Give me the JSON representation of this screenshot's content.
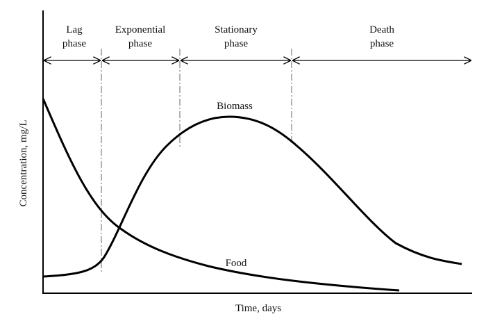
{
  "axes": {
    "x_label": "Time, days",
    "y_label": "Concentration,  mg/L"
  },
  "phases": [
    [
      "Lag",
      "phase"
    ],
    [
      "Exponential",
      "phase"
    ],
    [
      "Stationary",
      "phase"
    ],
    [
      "Death",
      "phase"
    ]
  ],
  "curves": {
    "biomass": "Biomass",
    "food": "Food"
  }
}
